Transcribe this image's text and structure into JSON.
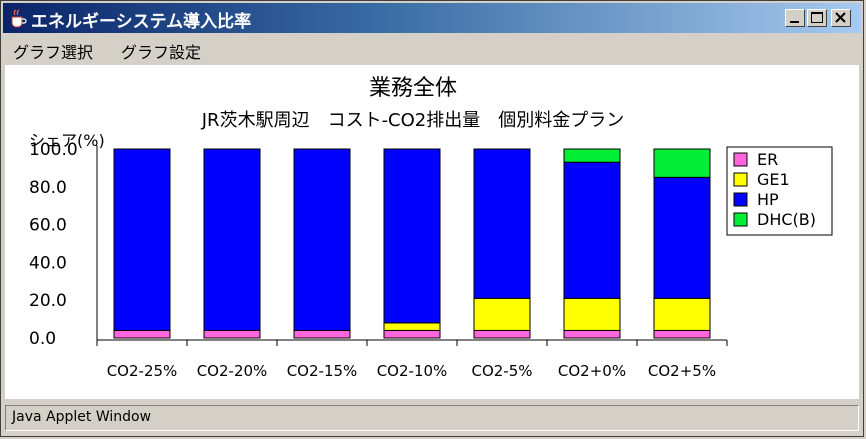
{
  "window": {
    "title": "エネルギーシステム導入比率"
  },
  "menu": {
    "items": [
      "グラフ選択",
      "グラフ設定"
    ]
  },
  "status_bar": {
    "text": "Java Applet Window"
  },
  "colors": {
    "ER": "#ff66dd",
    "GE1": "#ffff00",
    "HP": "#0000ff",
    "DHC(B)": "#00ee33"
  },
  "chart_data": {
    "type": "bar",
    "stacked": true,
    "title": "業務全体",
    "subtitle": "JR茨木駅周辺　コスト-CO2排出量　個別料金プラン",
    "ylabel": "シェア(%)",
    "ylim": [
      0,
      100
    ],
    "yticks": [
      "100.0",
      "80.0",
      "60.0",
      "40.0",
      "20.0",
      "0.0"
    ],
    "categories": [
      "CO2-25%",
      "CO2-20%",
      "CO2-15%",
      "CO2-10%",
      "CO2-5%",
      "CO2+0%",
      "CO2+5%"
    ],
    "series": [
      {
        "name": "ER",
        "values": [
          4,
          4,
          4,
          4,
          4,
          4,
          4
        ]
      },
      {
        "name": "GE1",
        "values": [
          0,
          0,
          0,
          4,
          17,
          17,
          17
        ]
      },
      {
        "name": "HP",
        "values": [
          96,
          96,
          96,
          92,
          79,
          72,
          64
        ]
      },
      {
        "name": "DHC(B)",
        "values": [
          0,
          0,
          0,
          0,
          0,
          7,
          15
        ]
      }
    ],
    "legend_position": "right"
  }
}
